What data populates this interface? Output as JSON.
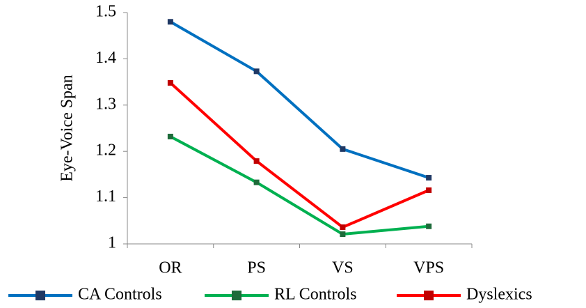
{
  "chart_data": {
    "type": "line",
    "y_label": "Eye-Voice Span",
    "categories": [
      "OR",
      "PS",
      "VS",
      "VPS"
    ],
    "series": [
      {
        "name": "CA Controls",
        "color": "#0070c0",
        "marker_color": "#1f3864",
        "values": [
          1.48,
          1.373,
          1.205,
          1.143
        ]
      },
      {
        "name": "RL Controls",
        "color": "#00b050",
        "marker_color": "#1e6b3a",
        "values": [
          1.232,
          1.133,
          1.021,
          1.038
        ]
      },
      {
        "name": "Dyslexics",
        "color": "#ff0000",
        "marker_color": "#c00000",
        "values": [
          1.348,
          1.179,
          1.036,
          1.116
        ]
      }
    ],
    "ylim": [
      1,
      1.5
    ],
    "yticks": [
      1,
      1.1,
      1.2,
      1.3,
      1.4,
      1.5
    ],
    "grid": false,
    "legend": "bottom"
  }
}
